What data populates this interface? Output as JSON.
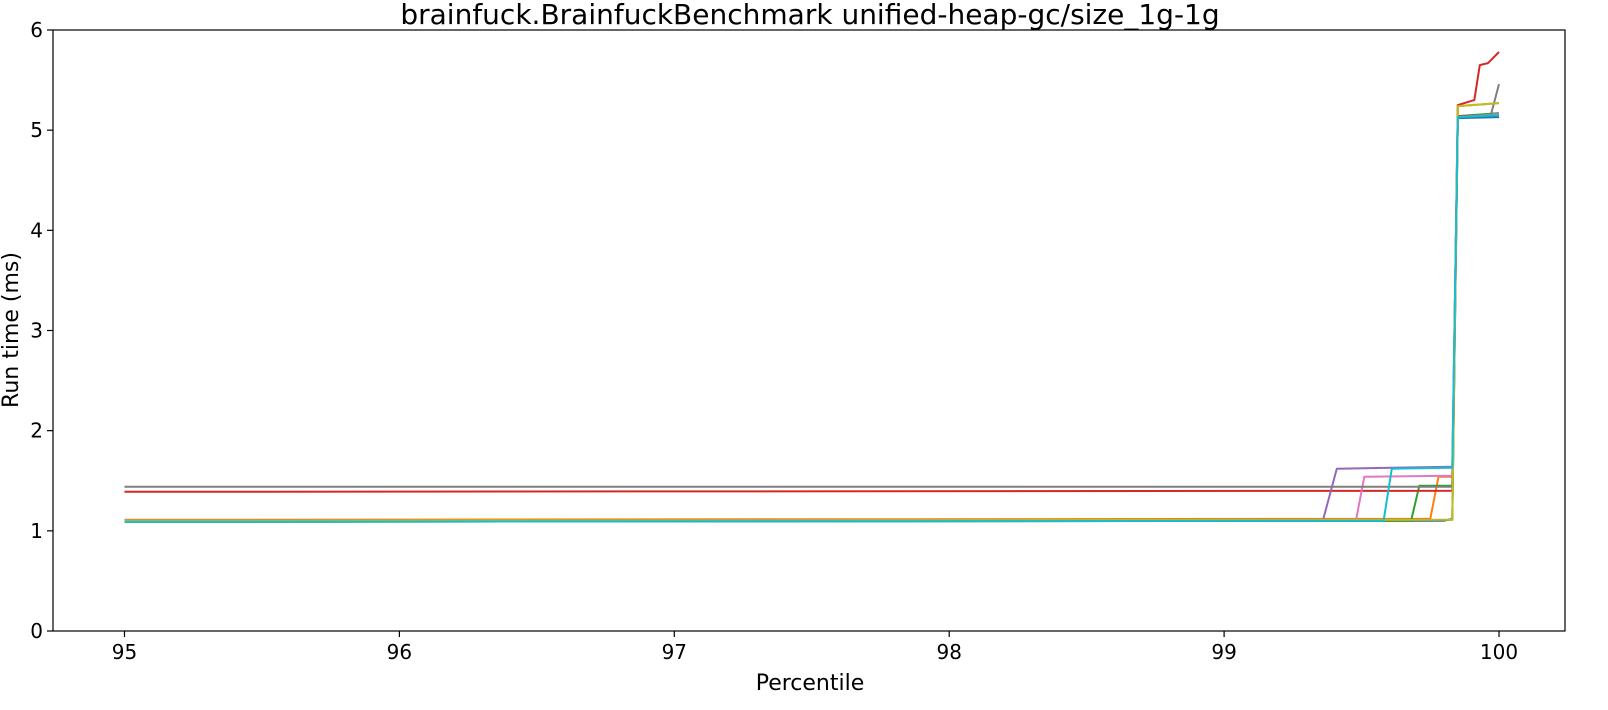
{
  "chart_data": {
    "type": "line",
    "title": "brainfuck.BrainfuckBenchmark unified-heap-gc/size_1g-1g",
    "xlabel": "Percentile",
    "ylabel": "Run time (ms)",
    "xlim": [
      94.74,
      100.24
    ],
    "ylim": [
      0,
      6
    ],
    "xticks": [
      95,
      96,
      97,
      98,
      99,
      100
    ],
    "yticks": [
      0,
      1,
      2,
      3,
      4,
      5,
      6
    ],
    "grid": false,
    "legend": "none",
    "series": [
      {
        "color": "#1f77b4",
        "points": [
          [
            95,
            1.09
          ],
          [
            99.8,
            1.1
          ],
          [
            99.83,
            1.12
          ],
          [
            99.85,
            5.12
          ],
          [
            100,
            5.13
          ]
        ]
      },
      {
        "color": "#ff7f0e",
        "points": [
          [
            95,
            1.11
          ],
          [
            99.75,
            1.12
          ],
          [
            99.78,
            1.54
          ],
          [
            99.83,
            1.54
          ],
          [
            99.85,
            5.24
          ],
          [
            100,
            5.27
          ]
        ]
      },
      {
        "color": "#2ca02c",
        "points": [
          [
            95,
            1.09
          ],
          [
            99.68,
            1.1
          ],
          [
            99.71,
            1.45
          ],
          [
            99.83,
            1.45
          ],
          [
            99.85,
            5.14
          ],
          [
            100,
            5.17
          ]
        ]
      },
      {
        "color": "#d62728",
        "points": [
          [
            95,
            1.39
          ],
          [
            99.83,
            1.4
          ],
          [
            99.85,
            5.25
          ],
          [
            99.91,
            5.3
          ],
          [
            99.93,
            5.65
          ],
          [
            99.96,
            5.67
          ],
          [
            100,
            5.78
          ]
        ]
      },
      {
        "color": "#9467bd",
        "points": [
          [
            95,
            1.1
          ],
          [
            99.36,
            1.11
          ],
          [
            99.41,
            1.62
          ],
          [
            99.83,
            1.64
          ],
          [
            99.85,
            5.13
          ],
          [
            100,
            5.16
          ]
        ]
      },
      {
        "color": "#8c564b",
        "points": [
          [
            95,
            1.1
          ],
          [
            99.83,
            1.11
          ],
          [
            99.85,
            5.14
          ],
          [
            100,
            5.15
          ]
        ]
      },
      {
        "color": "#e377c2",
        "points": [
          [
            95,
            1.1
          ],
          [
            99.48,
            1.11
          ],
          [
            99.51,
            1.54
          ],
          [
            99.83,
            1.55
          ],
          [
            99.85,
            5.13
          ],
          [
            100,
            5.16
          ]
        ]
      },
      {
        "color": "#7f7f7f",
        "points": [
          [
            95,
            1.44
          ],
          [
            99.83,
            1.44
          ],
          [
            99.85,
            5.13
          ],
          [
            99.97,
            5.15
          ],
          [
            100,
            5.46
          ]
        ]
      },
      {
        "color": "#bcbd22",
        "points": [
          [
            95,
            1.1
          ],
          [
            99.83,
            1.11
          ],
          [
            99.85,
            5.24
          ],
          [
            100,
            5.27
          ]
        ]
      },
      {
        "color": "#17becf",
        "points": [
          [
            95,
            1.09
          ],
          [
            99.58,
            1.1
          ],
          [
            99.61,
            1.62
          ],
          [
            99.83,
            1.63
          ],
          [
            99.85,
            5.13
          ],
          [
            100,
            5.15
          ]
        ]
      }
    ]
  }
}
